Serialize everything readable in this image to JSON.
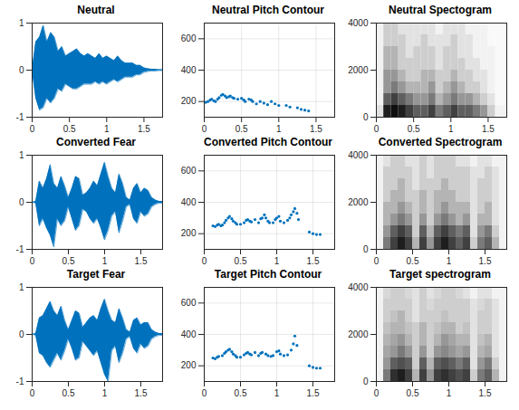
{
  "chart_data": [
    {
      "type": "area",
      "title": "Neutral",
      "color": "#0072bd",
      "grid": false,
      "xlim": [
        0,
        1.75
      ],
      "xticks": [
        0,
        0.5,
        1,
        1.5
      ],
      "ylim": [
        -1,
        1
      ],
      "yticks": [
        -1,
        0,
        1
      ],
      "x": [
        0,
        0.05,
        0.1,
        0.15,
        0.2,
        0.25,
        0.3,
        0.35,
        0.4,
        0.45,
        0.5,
        0.55,
        0.6,
        0.65,
        0.7,
        0.75,
        0.8,
        0.85,
        0.9,
        0.95,
        1,
        1.05,
        1.1,
        1.15,
        1.2,
        1.25,
        1.3,
        1.35,
        1.4,
        1.45,
        1.5,
        1.55,
        1.6,
        1.65,
        1.7,
        1.75
      ],
      "upper": [
        0,
        0.6,
        0.7,
        0.95,
        0.6,
        0.8,
        0.7,
        0.4,
        0.5,
        0.3,
        0.35,
        0.4,
        0.45,
        0.35,
        0.3,
        0.35,
        0.3,
        0.25,
        0.35,
        0.25,
        0.3,
        0.25,
        0.2,
        0.3,
        0.2,
        0.15,
        0.15,
        0.15,
        0.1,
        0.1,
        0.05,
        0.03,
        0.02,
        0.02,
        0.01,
        0.01
      ],
      "lower": [
        0,
        -0.6,
        -0.85,
        -0.8,
        -0.6,
        -0.7,
        -0.6,
        -0.4,
        -0.45,
        -0.3,
        -0.35,
        -0.4,
        -0.4,
        -0.35,
        -0.3,
        -0.3,
        -0.3,
        -0.25,
        -0.3,
        -0.25,
        -0.3,
        -0.25,
        -0.2,
        -0.25,
        -0.2,
        -0.15,
        -0.15,
        -0.15,
        -0.1,
        -0.1,
        -0.05,
        -0.03,
        -0.02,
        -0.02,
        -0.01,
        -0.01
      ]
    },
    {
      "type": "scatter",
      "title": "Neutral Pitch Contour",
      "color": "#0072bd",
      "grid": true,
      "xlim": [
        0,
        1.75
      ],
      "xticks": [
        0,
        0.5,
        1,
        1.5
      ],
      "ylim": [
        100,
        700
      ],
      "yticks": [
        200,
        400,
        600
      ],
      "x": [
        0.02,
        0.05,
        0.08,
        0.1,
        0.13,
        0.15,
        0.18,
        0.2,
        0.23,
        0.25,
        0.28,
        0.3,
        0.33,
        0.35,
        0.38,
        0.4,
        0.45,
        0.5,
        0.53,
        0.55,
        0.6,
        0.63,
        0.65,
        0.7,
        0.75,
        0.8,
        0.85,
        0.9,
        0.95,
        1.0,
        1.1,
        1.15,
        1.25,
        1.3,
        1.35,
        1.4
      ],
      "values": [
        195,
        200,
        210,
        215,
        205,
        200,
        215,
        225,
        240,
        245,
        235,
        225,
        230,
        235,
        225,
        220,
        215,
        220,
        210,
        200,
        215,
        210,
        200,
        185,
        200,
        190,
        180,
        200,
        185,
        175,
        175,
        165,
        160,
        150,
        145,
        140
      ]
    },
    {
      "type": "heatmap",
      "title": "Neutral Spectogram",
      "grid": false,
      "xlim": [
        0,
        1.75
      ],
      "xticks": [
        0,
        0.5,
        1,
        1.5
      ],
      "ylim": [
        0,
        4000
      ],
      "yticks": [
        0,
        2000,
        4000
      ],
      "zlim": [
        0,
        1
      ],
      "x_edges": [
        0,
        0.1,
        0.2,
        0.3,
        0.4,
        0.5,
        0.6,
        0.7,
        0.8,
        0.9,
        1,
        1.1,
        1.2,
        1.3,
        1.4,
        1.5,
        1.6,
        1.7,
        1.75
      ],
      "y_edges": [
        0,
        500,
        1000,
        1500,
        2000,
        2500,
        3000,
        3500,
        4000
      ],
      "z": [
        [
          0.2,
          0.9,
          0.95,
          0.9,
          0.8,
          0.7,
          0.7,
          0.8,
          0.6,
          0.7,
          0.8,
          0.7,
          0.7,
          0.6,
          0.5,
          0.3,
          0.1,
          0.1
        ],
        [
          0.1,
          0.7,
          0.8,
          0.7,
          0.6,
          0.5,
          0.5,
          0.6,
          0.4,
          0.5,
          0.6,
          0.5,
          0.5,
          0.4,
          0.3,
          0.2,
          0.05,
          0.05
        ],
        [
          0.1,
          0.5,
          0.6,
          0.5,
          0.4,
          0.4,
          0.4,
          0.5,
          0.3,
          0.4,
          0.5,
          0.4,
          0.3,
          0.3,
          0.2,
          0.1,
          0.05,
          0.05
        ],
        [
          0.1,
          0.5,
          0.5,
          0.4,
          0.3,
          0.3,
          0.4,
          0.4,
          0.3,
          0.3,
          0.4,
          0.3,
          0.3,
          0.2,
          0.2,
          0.1,
          0.05,
          0.05
        ],
        [
          0.1,
          0.4,
          0.4,
          0.3,
          0.3,
          0.3,
          0.3,
          0.3,
          0.2,
          0.3,
          0.3,
          0.3,
          0.2,
          0.2,
          0.1,
          0.1,
          0.05,
          0.05
        ],
        [
          0.1,
          0.4,
          0.4,
          0.3,
          0.2,
          0.3,
          0.3,
          0.3,
          0.2,
          0.3,
          0.3,
          0.2,
          0.2,
          0.1,
          0.1,
          0.1,
          0.05,
          0.05
        ],
        [
          0.1,
          0.3,
          0.3,
          0.3,
          0.2,
          0.2,
          0.3,
          0.2,
          0.2,
          0.2,
          0.3,
          0.2,
          0.2,
          0.1,
          0.1,
          0.05,
          0.05,
          0.05
        ],
        [
          0.1,
          0.3,
          0.3,
          0.2,
          0.2,
          0.2,
          0.2,
          0.2,
          0.1,
          0.2,
          0.2,
          0.2,
          0.1,
          0.1,
          0.1,
          0.05,
          0.05,
          0.05
        ]
      ]
    },
    {
      "type": "area",
      "title": "Converted Fear",
      "color": "#0072bd",
      "grid": false,
      "xlim": [
        0,
        1.8
      ],
      "xticks": [
        0,
        0.5,
        1,
        1.5
      ],
      "ylim": [
        -1,
        1
      ],
      "yticks": [
        -1,
        0,
        1
      ],
      "x": [
        0,
        0.05,
        0.1,
        0.15,
        0.2,
        0.25,
        0.3,
        0.35,
        0.4,
        0.45,
        0.5,
        0.55,
        0.6,
        0.65,
        0.7,
        0.75,
        0.8,
        0.85,
        0.9,
        0.95,
        1,
        1.05,
        1.1,
        1.15,
        1.2,
        1.25,
        1.3,
        1.35,
        1.4,
        1.45,
        1.5,
        1.55,
        1.6,
        1.65,
        1.7,
        1.75,
        1.8
      ],
      "upper": [
        0,
        0.02,
        0.45,
        0.3,
        0.5,
        0.8,
        0.4,
        0.3,
        0.55,
        0.35,
        0.1,
        0.3,
        0.55,
        0.5,
        0.15,
        0.2,
        0.3,
        0.45,
        0.35,
        0.6,
        0.85,
        0.55,
        0.3,
        0.2,
        0.6,
        0.4,
        0.1,
        0.05,
        0.3,
        0.4,
        0.2,
        0.3,
        0.25,
        0.1,
        0.05,
        0.02,
        0.02
      ],
      "lower": [
        0,
        -0.02,
        -0.5,
        -0.35,
        -0.55,
        -0.7,
        -0.95,
        -0.35,
        -0.5,
        -0.4,
        -0.1,
        -0.35,
        -0.6,
        -0.5,
        -0.15,
        -0.2,
        -0.35,
        -0.45,
        -0.35,
        -0.55,
        -0.8,
        -0.6,
        -0.3,
        -0.2,
        -0.65,
        -0.4,
        -0.1,
        -0.05,
        -0.35,
        -0.45,
        -0.2,
        -0.3,
        -0.25,
        -0.1,
        -0.05,
        -0.02,
        -0.02
      ]
    },
    {
      "type": "scatter",
      "title": "Converted Pitch Contour",
      "color": "#0072bd",
      "grid": true,
      "xlim": [
        0,
        1.8
      ],
      "xticks": [
        0,
        0.5,
        1,
        1.5
      ],
      "ylim": [
        100,
        700
      ],
      "yticks": [
        200,
        400,
        600
      ],
      "x": [
        0.12,
        0.15,
        0.18,
        0.2,
        0.23,
        0.25,
        0.28,
        0.3,
        0.33,
        0.35,
        0.38,
        0.4,
        0.43,
        0.45,
        0.5,
        0.55,
        0.58,
        0.6,
        0.63,
        0.65,
        0.7,
        0.75,
        0.78,
        0.8,
        0.83,
        0.85,
        0.88,
        0.9,
        0.95,
        0.98,
        1.0,
        1.03,
        1.05,
        1.1,
        1.15,
        1.18,
        1.2,
        1.23,
        1.25,
        1.28,
        1.3,
        1.45,
        1.5,
        1.55,
        1.6
      ],
      "values": [
        250,
        245,
        255,
        260,
        250,
        255,
        270,
        285,
        300,
        310,
        295,
        280,
        270,
        260,
        260,
        270,
        285,
        290,
        280,
        275,
        290,
        270,
        295,
        300,
        320,
        300,
        280,
        270,
        270,
        290,
        300,
        310,
        280,
        270,
        285,
        300,
        320,
        340,
        360,
        330,
        290,
        210,
        200,
        195,
        195
      ]
    },
    {
      "type": "heatmap",
      "title": "Converted Spectrogram",
      "grid": false,
      "xlim": [
        0,
        1.8
      ],
      "xticks": [
        0,
        0.5,
        1,
        1.5
      ],
      "ylim": [
        0,
        4000
      ],
      "yticks": [
        0,
        2000,
        4000
      ],
      "zlim": [
        0,
        1
      ],
      "x_edges": [
        0,
        0.1,
        0.2,
        0.3,
        0.4,
        0.5,
        0.6,
        0.7,
        0.8,
        0.9,
        1,
        1.1,
        1.2,
        1.3,
        1.4,
        1.5,
        1.6,
        1.7,
        1.8
      ],
      "y_edges": [
        0,
        500,
        1000,
        1500,
        2000,
        2500,
        3000,
        3500,
        4000
      ],
      "z": [
        [
          0.1,
          0.6,
          0.8,
          0.9,
          0.8,
          0.4,
          0.8,
          0.5,
          0.8,
          0.9,
          0.8,
          0.7,
          0.8,
          0.3,
          0.6,
          0.7,
          0.4,
          0.1
        ],
        [
          0.1,
          0.5,
          0.7,
          0.8,
          0.7,
          0.3,
          0.7,
          0.4,
          0.7,
          0.8,
          0.7,
          0.6,
          0.7,
          0.2,
          0.5,
          0.6,
          0.3,
          0.1
        ],
        [
          0.1,
          0.4,
          0.5,
          0.6,
          0.5,
          0.3,
          0.5,
          0.3,
          0.5,
          0.6,
          0.5,
          0.4,
          0.5,
          0.2,
          0.4,
          0.4,
          0.2,
          0.1
        ],
        [
          0.1,
          0.4,
          0.4,
          0.5,
          0.4,
          0.3,
          0.4,
          0.3,
          0.4,
          0.5,
          0.4,
          0.4,
          0.4,
          0.2,
          0.3,
          0.4,
          0.2,
          0.1
        ],
        [
          0.1,
          0.3,
          0.4,
          0.4,
          0.3,
          0.3,
          0.4,
          0.3,
          0.4,
          0.4,
          0.4,
          0.3,
          0.3,
          0.2,
          0.3,
          0.3,
          0.2,
          0.1
        ],
        [
          0.1,
          0.3,
          0.3,
          0.4,
          0.3,
          0.2,
          0.3,
          0.3,
          0.3,
          0.4,
          0.3,
          0.3,
          0.3,
          0.2,
          0.3,
          0.3,
          0.2,
          0.1
        ],
        [
          0.1,
          0.3,
          0.3,
          0.3,
          0.3,
          0.2,
          0.3,
          0.2,
          0.3,
          0.3,
          0.3,
          0.3,
          0.3,
          0.2,
          0.2,
          0.3,
          0.2,
          0.1
        ],
        [
          0.1,
          0.2,
          0.3,
          0.3,
          0.2,
          0.2,
          0.3,
          0.2,
          0.3,
          0.3,
          0.3,
          0.2,
          0.2,
          0.1,
          0.2,
          0.2,
          0.1,
          0.1
        ]
      ]
    },
    {
      "type": "area",
      "title": "Target Fear",
      "color": "#0072bd",
      "grid": false,
      "xlim": [
        0,
        1.8
      ],
      "xticks": [
        0,
        0.5,
        1,
        1.5
      ],
      "ylim": [
        -1,
        1
      ],
      "yticks": [
        -1,
        0,
        1
      ],
      "x": [
        0,
        0.05,
        0.1,
        0.15,
        0.2,
        0.25,
        0.3,
        0.35,
        0.4,
        0.45,
        0.5,
        0.55,
        0.6,
        0.65,
        0.7,
        0.75,
        0.8,
        0.85,
        0.9,
        0.95,
        1,
        1.05,
        1.1,
        1.15,
        1.2,
        1.25,
        1.3,
        1.35,
        1.4,
        1.45,
        1.5,
        1.55,
        1.6,
        1.65,
        1.7,
        1.75,
        1.8
      ],
      "upper": [
        0,
        0.02,
        0.35,
        0.4,
        0.55,
        0.7,
        0.5,
        0.4,
        0.6,
        0.3,
        0.1,
        0.3,
        0.5,
        0.45,
        0.15,
        0.25,
        0.35,
        0.4,
        0.3,
        0.55,
        0.75,
        0.5,
        0.3,
        0.25,
        0.55,
        0.35,
        0.1,
        0.05,
        0.3,
        0.35,
        0.2,
        0.25,
        0.25,
        0.1,
        0.05,
        0.02,
        0.02
      ],
      "lower": [
        0,
        -0.02,
        -0.4,
        -0.45,
        -0.6,
        -0.7,
        -0.55,
        -0.4,
        -0.55,
        -0.35,
        -0.1,
        -0.3,
        -0.55,
        -0.5,
        -0.15,
        -0.25,
        -0.35,
        -0.45,
        -0.35,
        -0.6,
        -0.85,
        -1,
        -0.35,
        -0.25,
        -0.6,
        -0.4,
        -0.1,
        -0.05,
        -0.3,
        -0.4,
        -0.2,
        -0.3,
        -0.25,
        -0.1,
        -0.05,
        -0.02,
        -0.02
      ]
    },
    {
      "type": "scatter",
      "title": "Target Pitch Contour",
      "color": "#0072bd",
      "grid": true,
      "xlim": [
        0,
        1.8
      ],
      "xticks": [
        0,
        0.5,
        1,
        1.5
      ],
      "ylim": [
        100,
        700
      ],
      "yticks": [
        200,
        400,
        600
      ],
      "x": [
        0.12,
        0.15,
        0.18,
        0.2,
        0.25,
        0.28,
        0.3,
        0.33,
        0.35,
        0.38,
        0.4,
        0.43,
        0.45,
        0.5,
        0.55,
        0.58,
        0.6,
        0.63,
        0.65,
        0.7,
        0.75,
        0.78,
        0.8,
        0.85,
        0.88,
        0.92,
        0.95,
        1.0,
        1.03,
        1.05,
        1.1,
        1.15,
        1.2,
        1.23,
        1.25,
        1.28,
        1.45,
        1.5,
        1.55,
        1.6
      ],
      "values": [
        250,
        245,
        255,
        260,
        265,
        280,
        290,
        300,
        305,
        290,
        275,
        265,
        255,
        255,
        270,
        280,
        285,
        275,
        270,
        285,
        265,
        280,
        285,
        275,
        265,
        260,
        265,
        290,
        295,
        275,
        265,
        270,
        300,
        340,
        390,
        330,
        200,
        190,
        185,
        185
      ]
    },
    {
      "type": "heatmap",
      "title": "Target spectrogram",
      "grid": false,
      "xlim": [
        0,
        1.8
      ],
      "xticks": [
        0,
        0.5,
        1,
        1.5
      ],
      "ylim": [
        0,
        4000
      ],
      "yticks": [
        0,
        2000,
        4000
      ],
      "zlim": [
        0,
        1
      ],
      "x_edges": [
        0,
        0.1,
        0.2,
        0.3,
        0.4,
        0.5,
        0.6,
        0.7,
        0.8,
        0.9,
        1,
        1.1,
        1.2,
        1.3,
        1.4,
        1.5,
        1.6,
        1.7,
        1.8
      ],
      "y_edges": [
        0,
        500,
        1000,
        1500,
        2000,
        2500,
        3000,
        3500,
        4000
      ],
      "z": [
        [
          0.1,
          0.6,
          0.85,
          0.9,
          0.8,
          0.4,
          0.8,
          0.5,
          0.8,
          0.85,
          0.8,
          0.75,
          0.8,
          0.3,
          0.6,
          0.7,
          0.4,
          0.1
        ],
        [
          0.1,
          0.5,
          0.7,
          0.75,
          0.7,
          0.3,
          0.7,
          0.4,
          0.7,
          0.75,
          0.7,
          0.6,
          0.7,
          0.2,
          0.5,
          0.6,
          0.3,
          0.1
        ],
        [
          0.1,
          0.45,
          0.5,
          0.6,
          0.5,
          0.3,
          0.5,
          0.3,
          0.5,
          0.55,
          0.5,
          0.45,
          0.5,
          0.2,
          0.4,
          0.45,
          0.2,
          0.1
        ],
        [
          0.1,
          0.4,
          0.45,
          0.5,
          0.4,
          0.3,
          0.4,
          0.3,
          0.4,
          0.5,
          0.45,
          0.4,
          0.4,
          0.2,
          0.35,
          0.4,
          0.2,
          0.1
        ],
        [
          0.1,
          0.35,
          0.4,
          0.4,
          0.35,
          0.3,
          0.4,
          0.3,
          0.35,
          0.4,
          0.4,
          0.3,
          0.35,
          0.2,
          0.3,
          0.3,
          0.2,
          0.1
        ],
        [
          0.1,
          0.3,
          0.35,
          0.4,
          0.3,
          0.2,
          0.3,
          0.3,
          0.3,
          0.35,
          0.3,
          0.3,
          0.3,
          0.2,
          0.3,
          0.3,
          0.2,
          0.1
        ],
        [
          0.1,
          0.3,
          0.3,
          0.3,
          0.3,
          0.2,
          0.3,
          0.25,
          0.3,
          0.3,
          0.3,
          0.3,
          0.3,
          0.2,
          0.25,
          0.3,
          0.2,
          0.1
        ],
        [
          0.1,
          0.25,
          0.3,
          0.3,
          0.25,
          0.2,
          0.3,
          0.2,
          0.25,
          0.3,
          0.3,
          0.25,
          0.2,
          0.1,
          0.2,
          0.2,
          0.1,
          0.1
        ]
      ]
    }
  ]
}
